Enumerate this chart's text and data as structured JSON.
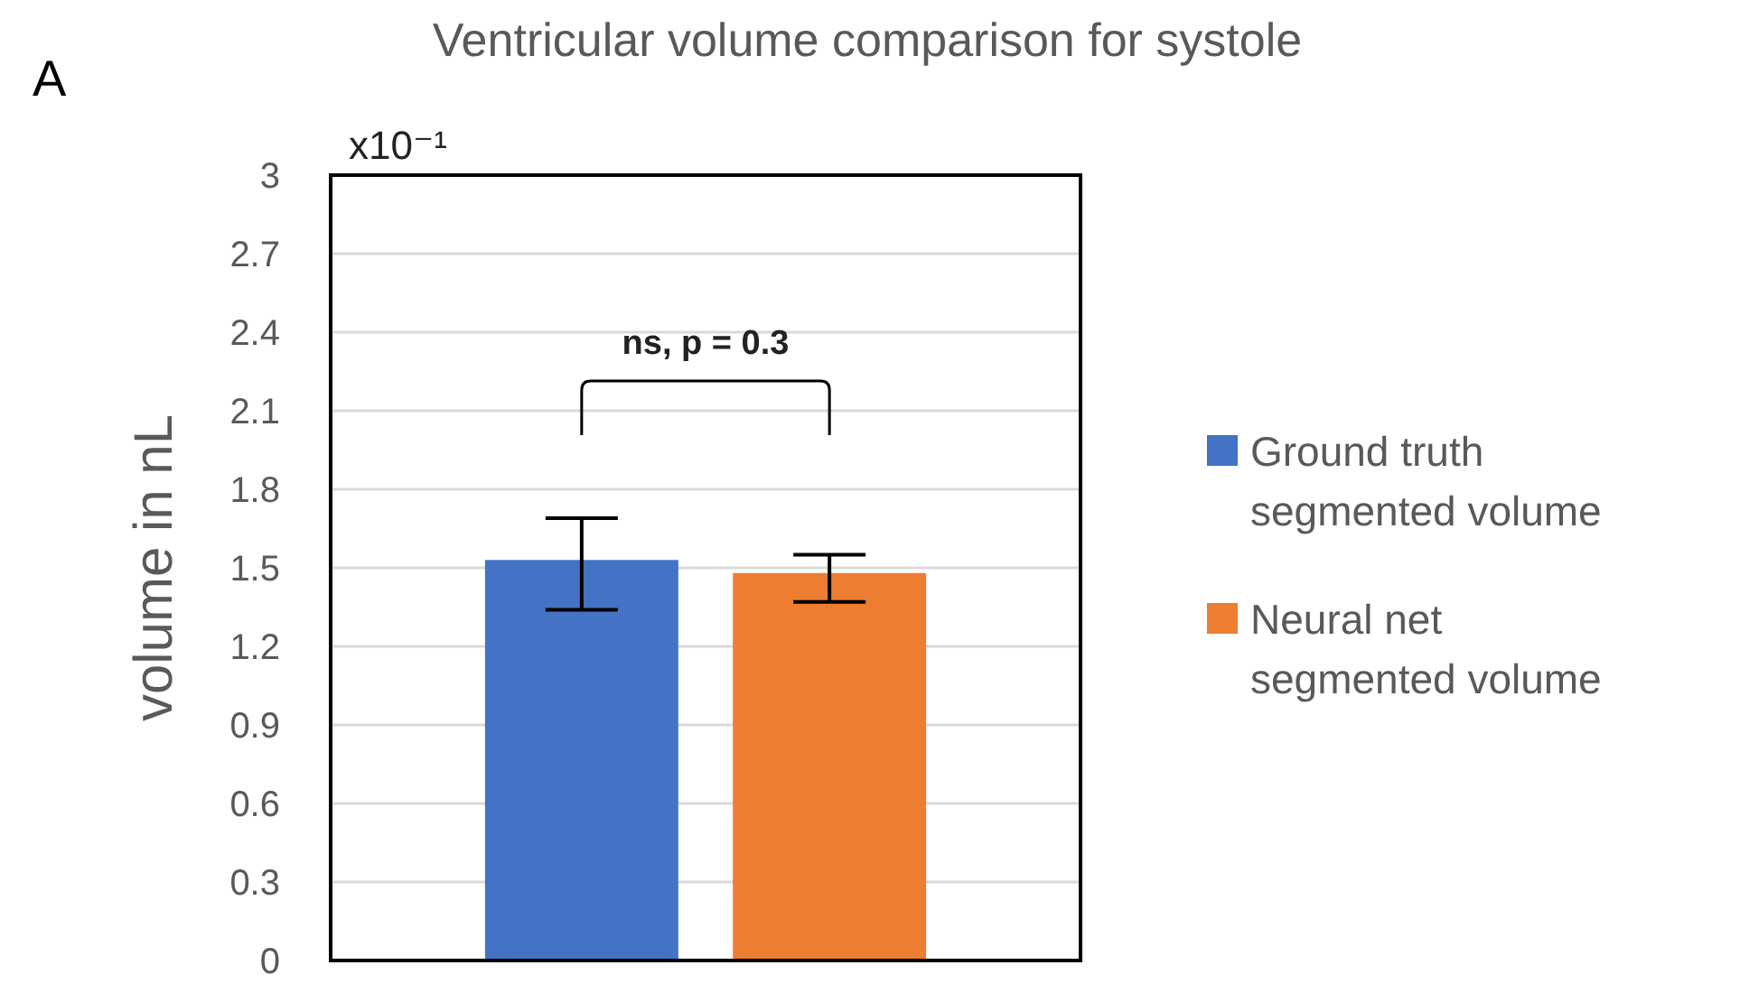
{
  "chart_data": {
    "type": "bar",
    "title": "Ventricular volume comparison for systole",
    "ylabel": "volume in nL",
    "categories": [
      null
    ],
    "series": [
      {
        "name": "Ground truth segmented volume",
        "color": "#4472c4",
        "values": [
          1.53
        ],
        "errors": [
          [
            1.34,
            1.69
          ]
        ]
      },
      {
        "name": "Neural net segmented volume",
        "color": "#ed7d31",
        "values": [
          1.48
        ],
        "errors": [
          [
            1.37,
            1.55
          ]
        ]
      }
    ],
    "ylim": [
      0,
      3
    ],
    "yticks": [
      0,
      {
        "value": 0.3,
        "label": "0.3"
      },
      {
        "value": 0.6,
        "label": "0.6"
      },
      {
        "value": 0.9,
        "label": "0.9"
      },
      {
        "value": 1.2,
        "label": "1.2"
      },
      {
        "value": 1.5,
        "label": "1.5"
      },
      {
        "value": 1.8,
        "label": "1.8"
      },
      {
        "value": 2.1,
        "label": "2.1"
      },
      {
        "value": 2.4,
        "label": "2.4"
      },
      {
        "value": 2.7,
        "label": "2.7"
      },
      3
    ],
    "grid": "y",
    "legend": "right",
    "annotations": [
      "A",
      "x10⁻¹",
      "ns, p  = 0.3"
    ]
  }
}
